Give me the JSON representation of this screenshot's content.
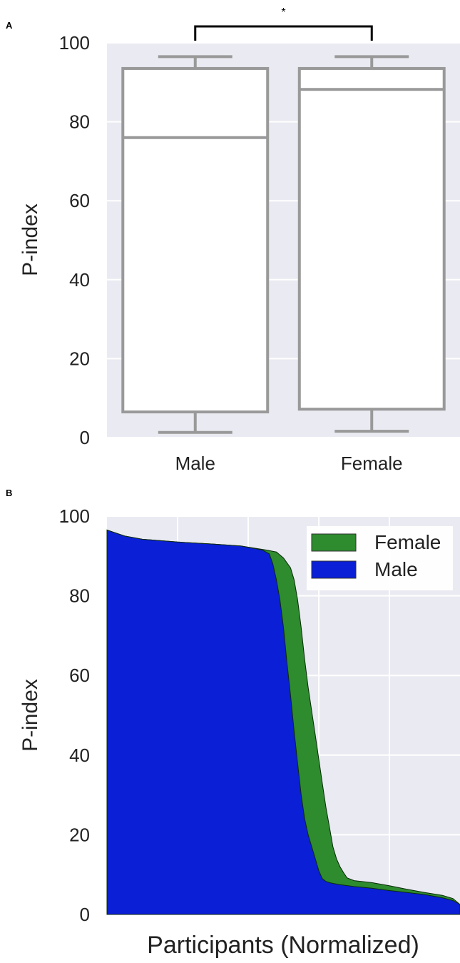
{
  "panels": {
    "a": {
      "label": "A"
    },
    "b": {
      "label": "B"
    }
  },
  "chart_data": [
    {
      "type": "box",
      "panel": "A",
      "ylabel": "P-index",
      "ylim": [
        0,
        100
      ],
      "yticks": [
        "0",
        "20",
        "40",
        "60",
        "80",
        "100"
      ],
      "categories": [
        "Male",
        "Female"
      ],
      "boxes": [
        {
          "category": "Male",
          "whisker_low": 1.3,
          "q1": 6.5,
          "median": 76.0,
          "q3": 93.5,
          "whisker_high": 96.5
        },
        {
          "category": "Female",
          "whisker_low": 1.6,
          "q1": 7.2,
          "median": 88.2,
          "q3": 93.5,
          "whisker_high": 96.5
        }
      ],
      "significance": {
        "between": [
          "Male",
          "Female"
        ],
        "label": "*"
      },
      "grid": true,
      "colors": {
        "background": "#eaeaf2",
        "box_edge": "#999999",
        "box_fill": "#ffffff"
      }
    },
    {
      "type": "area",
      "panel": "B",
      "xlabel": "Participants (Normalized)",
      "ylabel": "P-index",
      "ylim": [
        0,
        100
      ],
      "xlim": [
        0,
        1
      ],
      "yticks": [
        "0",
        "20",
        "40",
        "60",
        "80",
        "100"
      ],
      "legend_position": "top-right",
      "grid": true,
      "series": [
        {
          "name": "Female",
          "color": "#2e8b2e",
          "x": [
            0,
            0.05,
            0.1,
            0.2,
            0.3,
            0.38,
            0.45,
            0.48,
            0.5,
            0.52,
            0.53,
            0.54,
            0.55,
            0.56,
            0.57,
            0.58,
            0.59,
            0.6,
            0.61,
            0.62,
            0.63,
            0.64,
            0.65,
            0.66,
            0.67,
            0.68,
            0.7,
            0.75,
            0.8,
            0.85,
            0.9,
            0.95,
            0.98,
            1.0
          ],
          "values": [
            96.5,
            95.0,
            94.2,
            93.5,
            93.0,
            92.5,
            91.5,
            91.0,
            89.5,
            87.0,
            84.0,
            79.0,
            72.0,
            64.0,
            57.0,
            51.0,
            45.0,
            39.0,
            33.0,
            27.0,
            22.0,
            17.0,
            14.0,
            12.0,
            10.5,
            9.2,
            8.5,
            8.0,
            7.2,
            6.3,
            5.5,
            4.8,
            4.0,
            2.5
          ]
        },
        {
          "name": "Male",
          "color": "#0a1fd6",
          "x": [
            0,
            0.05,
            0.1,
            0.2,
            0.3,
            0.38,
            0.44,
            0.46,
            0.47,
            0.48,
            0.49,
            0.5,
            0.51,
            0.52,
            0.53,
            0.54,
            0.55,
            0.56,
            0.57,
            0.58,
            0.59,
            0.6,
            0.61,
            0.62,
            0.63,
            0.64,
            0.66,
            0.7,
            0.75,
            0.8,
            0.85,
            0.9,
            0.95,
            0.98,
            1.0
          ],
          "values": [
            96.5,
            95.0,
            94.2,
            93.5,
            93.0,
            92.5,
            91.5,
            90.5,
            88.0,
            84.0,
            79.0,
            72.0,
            63.0,
            55.0,
            46.0,
            38.0,
            30.0,
            24.0,
            20.0,
            17.0,
            14.0,
            11.0,
            9.0,
            8.3,
            8.0,
            7.8,
            7.5,
            7.0,
            6.6,
            6.0,
            5.5,
            5.0,
            4.2,
            3.5,
            2.5
          ]
        }
      ],
      "colors": {
        "background": "#eaeaf2"
      }
    }
  ]
}
